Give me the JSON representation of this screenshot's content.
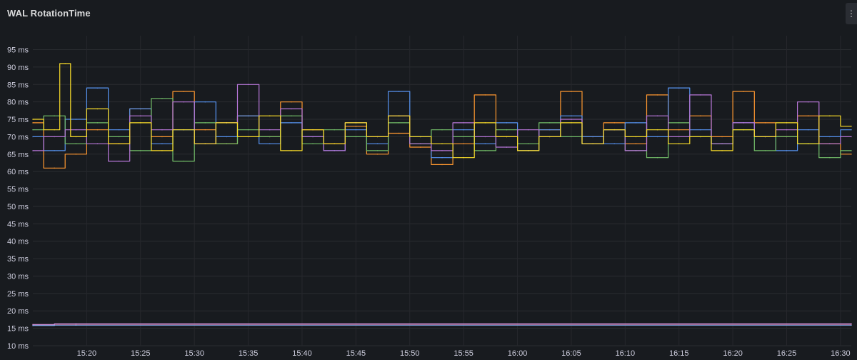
{
  "panel": {
    "title": "WAL RotationTime",
    "menu_icon": "⋮"
  },
  "chart_data": {
    "type": "line",
    "title": "WAL RotationTime",
    "xlabel": "",
    "ylabel": "",
    "y_unit": "ms",
    "ylim": [
      10,
      99
    ],
    "y_ticks": [
      10,
      15,
      20,
      25,
      30,
      35,
      40,
      45,
      50,
      55,
      60,
      65,
      70,
      75,
      80,
      85,
      90,
      95
    ],
    "y_tick_labels": [
      "10 ms",
      "15 ms",
      "20 ms",
      "25 ms",
      "30 ms",
      "35 ms",
      "40 ms",
      "45 ms",
      "50 ms",
      "55 ms",
      "60 ms",
      "65 ms",
      "70 ms",
      "75 ms",
      "80 ms",
      "85 ms",
      "90 ms",
      "95 ms"
    ],
    "x_range": [
      "15:15",
      "16:31"
    ],
    "x_tick_labels": [
      "15:20",
      "15:25",
      "15:30",
      "15:35",
      "15:40",
      "15:45",
      "15:50",
      "15:55",
      "16:00",
      "16:05",
      "16:10",
      "16:15",
      "16:20",
      "16:25",
      "16:30"
    ],
    "grid": true,
    "legend": "none",
    "series": [
      {
        "color": "#FF9830",
        "x": [
          "15:15",
          "15:17",
          "15:19",
          "15:21",
          "15:23",
          "15:25",
          "15:27",
          "15:29",
          "15:31",
          "15:33",
          "15:35",
          "15:37",
          "15:39",
          "15:41",
          "15:43",
          "15:45",
          "15:47",
          "15:49",
          "15:51",
          "15:53",
          "15:55",
          "15:57",
          "15:59",
          "16:01",
          "16:03",
          "16:05",
          "16:07",
          "16:09",
          "16:11",
          "16:13",
          "16:15",
          "16:17",
          "16:19",
          "16:21",
          "16:23",
          "16:25",
          "16:27",
          "16:29",
          "16:31"
        ],
        "values": [
          74,
          61,
          65,
          72,
          68,
          78,
          70,
          83,
          72,
          68,
          76,
          70,
          80,
          72,
          68,
          73,
          65,
          71,
          67,
          62,
          68,
          82,
          70,
          66,
          72,
          83,
          70,
          74,
          68,
          82,
          72,
          76,
          70,
          83,
          74,
          70,
          76,
          68,
          65
        ]
      },
      {
        "color": "#5794F2",
        "x": [
          "15:15",
          "15:17",
          "15:19",
          "15:21",
          "15:23",
          "15:25",
          "15:27",
          "15:29",
          "15:31",
          "15:33",
          "15:35",
          "15:37",
          "15:39",
          "15:41",
          "15:43",
          "15:45",
          "15:47",
          "15:49",
          "15:51",
          "15:53",
          "15:55",
          "15:57",
          "15:59",
          "16:01",
          "16:03",
          "16:05",
          "16:07",
          "16:09",
          "16:11",
          "16:13",
          "16:15",
          "16:17",
          "16:19",
          "16:21",
          "16:23",
          "16:25",
          "16:27",
          "16:29",
          "16:31"
        ],
        "values": [
          70,
          66,
          75,
          84,
          72,
          78,
          68,
          72,
          80,
          70,
          76,
          68,
          74,
          70,
          66,
          72,
          68,
          83,
          70,
          64,
          72,
          68,
          74,
          66,
          72,
          76,
          70,
          68,
          74,
          70,
          84,
          72,
          68,
          74,
          70,
          66,
          72,
          70,
          72
        ]
      },
      {
        "color": "#73BF69",
        "x": [
          "15:15",
          "15:17",
          "15:19",
          "15:21",
          "15:23",
          "15:25",
          "15:27",
          "15:29",
          "15:31",
          "15:33",
          "15:35",
          "15:37",
          "15:39",
          "15:41",
          "15:43",
          "15:45",
          "15:47",
          "15:49",
          "15:51",
          "15:53",
          "15:55",
          "15:57",
          "15:59",
          "16:01",
          "16:03",
          "16:05",
          "16:07",
          "16:09",
          "16:11",
          "16:13",
          "16:15",
          "16:17",
          "16:19",
          "16:21",
          "16:23",
          "16:25",
          "16:27",
          "16:29",
          "16:31"
        ],
        "values": [
          72,
          76,
          68,
          74,
          70,
          66,
          81,
          63,
          74,
          68,
          72,
          70,
          76,
          68,
          72,
          70,
          66,
          74,
          68,
          72,
          70,
          66,
          72,
          68,
          74,
          70,
          68,
          72,
          66,
          64,
          74,
          70,
          68,
          72,
          66,
          70,
          68,
          64,
          66
        ]
      },
      {
        "color": "#B877D9",
        "x": [
          "15:15",
          "15:17",
          "15:19",
          "15:21",
          "15:23",
          "15:25",
          "15:27",
          "15:29",
          "15:31",
          "15:33",
          "15:35",
          "15:37",
          "15:39",
          "15:41",
          "15:43",
          "15:45",
          "15:47",
          "15:49",
          "15:51",
          "15:53",
          "15:55",
          "15:57",
          "15:59",
          "16:01",
          "16:03",
          "16:05",
          "16:07",
          "16:09",
          "16:11",
          "16:13",
          "16:15",
          "16:17",
          "16:19",
          "16:21",
          "16:23",
          "16:25",
          "16:27",
          "16:29",
          "16:31"
        ],
        "values": [
          66,
          70,
          72,
          68,
          63,
          76,
          72,
          80,
          68,
          74,
          85,
          72,
          78,
          70,
          66,
          74,
          70,
          76,
          68,
          66,
          74,
          70,
          67,
          72,
          70,
          75,
          68,
          72,
          66,
          76,
          70,
          82,
          68,
          74,
          70,
          72,
          80,
          68,
          70
        ]
      },
      {
        "color": "#FADE2A",
        "x": [
          "15:15",
          "15:17",
          "15:18",
          "15:19",
          "15:21",
          "15:23",
          "15:25",
          "15:27",
          "15:29",
          "15:31",
          "15:33",
          "15:35",
          "15:37",
          "15:39",
          "15:41",
          "15:43",
          "15:45",
          "15:47",
          "15:49",
          "15:51",
          "15:53",
          "15:55",
          "15:57",
          "15:59",
          "16:01",
          "16:03",
          "16:05",
          "16:07",
          "16:09",
          "16:11",
          "16:13",
          "16:15",
          "16:17",
          "16:19",
          "16:21",
          "16:23",
          "16:25",
          "16:27",
          "16:29",
          "16:31"
        ],
        "values": [
          75,
          72,
          91,
          70,
          78,
          68,
          74,
          66,
          72,
          68,
          74,
          70,
          76,
          66,
          72,
          68,
          74,
          70,
          76,
          70,
          68,
          64,
          74,
          70,
          66,
          70,
          74,
          68,
          72,
          70,
          72,
          68,
          70,
          66,
          72,
          70,
          74,
          68,
          76,
          73
        ]
      },
      {
        "color": "#F2495C",
        "x": [
          "15:15",
          "15:19",
          "16:31"
        ],
        "values": [
          16,
          16.2,
          16.2
        ]
      },
      {
        "color": "#8AB8FF",
        "x": [
          "15:15",
          "15:19",
          "16:31"
        ],
        "values": [
          15.8,
          15.9,
          15.9
        ]
      },
      {
        "color": "#CA95E5",
        "x": [
          "15:15",
          "15:19",
          "16:31"
        ],
        "values": [
          16.1,
          16.3,
          16.3
        ]
      }
    ]
  }
}
